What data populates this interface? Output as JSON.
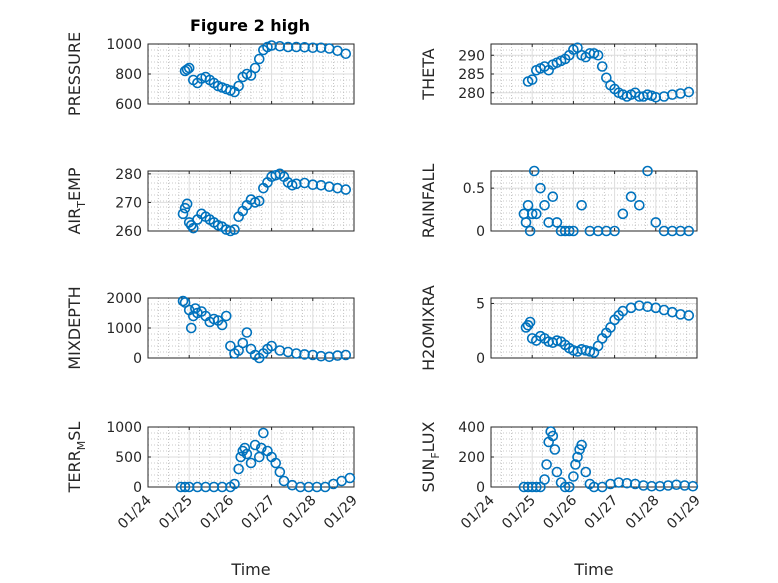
{
  "figure": {
    "title": "Figure 2 high",
    "xlabel": "Time",
    "marker_color": "#0072bd",
    "x_tick_labels": [
      "01/24",
      "01/25",
      "01/26",
      "01/27",
      "01/28",
      "01/29"
    ]
  },
  "chart_data": [
    {
      "type": "scatter",
      "ylabel": "PRESSURE",
      "xlim": [
        0,
        5
      ],
      "ylim": [
        600,
        1000
      ],
      "yticks": [
        600,
        800,
        1000
      ],
      "x": [
        0.9,
        0.95,
        1.0,
        1.1,
        1.2,
        1.3,
        1.4,
        1.5,
        1.6,
        1.7,
        1.8,
        1.9,
        2.0,
        2.1,
        2.2,
        2.3,
        2.4,
        2.5,
        2.6,
        2.7,
        2.8,
        2.9,
        3.0,
        3.2,
        3.4,
        3.6,
        3.8,
        4.0,
        4.2,
        4.4,
        4.6,
        4.8
      ],
      "y": [
        820,
        830,
        840,
        760,
        740,
        770,
        780,
        760,
        740,
        720,
        710,
        700,
        690,
        680,
        720,
        780,
        800,
        790,
        840,
        900,
        960,
        980,
        990,
        985,
        980,
        980,
        978,
        975,
        975,
        970,
        955,
        935
      ]
    },
    {
      "type": "scatter",
      "ylabel": "THETA",
      "xlim": [
        0,
        5
      ],
      "ylim": [
        277,
        293
      ],
      "yticks": [
        280,
        285,
        290
      ],
      "x": [
        0.9,
        1.0,
        1.1,
        1.2,
        1.3,
        1.4,
        1.5,
        1.6,
        1.7,
        1.8,
        1.9,
        2.0,
        2.1,
        2.2,
        2.3,
        2.4,
        2.5,
        2.6,
        2.7,
        2.8,
        2.9,
        3.0,
        3.1,
        3.2,
        3.3,
        3.4,
        3.5,
        3.6,
        3.7,
        3.8,
        3.9,
        4.0,
        4.2,
        4.4,
        4.6,
        4.8
      ],
      "y": [
        283,
        283.5,
        286,
        286.5,
        287,
        286,
        287.5,
        288,
        288.5,
        289,
        290,
        291.5,
        292,
        290,
        289.5,
        290.5,
        290.5,
        290,
        287,
        284,
        282,
        281,
        280,
        279.5,
        279,
        279.5,
        280,
        279,
        279,
        279.5,
        279.2,
        278.8,
        279,
        279.5,
        279.8,
        280.2
      ]
    },
    {
      "type": "scatter",
      "ylabel": "AIR_TEMP",
      "xlim": [
        0,
        5
      ],
      "ylim": [
        260,
        281
      ],
      "yticks": [
        260,
        270,
        280
      ],
      "x": [
        0.85,
        0.9,
        0.95,
        1.0,
        1.05,
        1.1,
        1.2,
        1.3,
        1.4,
        1.5,
        1.6,
        1.7,
        1.8,
        1.9,
        2.0,
        2.1,
        2.2,
        2.3,
        2.4,
        2.5,
        2.6,
        2.7,
        2.8,
        2.9,
        3.0,
        3.1,
        3.2,
        3.3,
        3.4,
        3.5,
        3.6,
        3.8,
        4.0,
        4.2,
        4.4,
        4.6,
        4.8
      ],
      "y": [
        266,
        268,
        269.5,
        263,
        262,
        261,
        264,
        266,
        265,
        264,
        263,
        262,
        261.5,
        260.5,
        260,
        260.5,
        265,
        267,
        269,
        271,
        270,
        270.5,
        275,
        277,
        279,
        279.5,
        280,
        279,
        277,
        276,
        276.5,
        276.8,
        276.2,
        276,
        275.5,
        275,
        274.5
      ]
    },
    {
      "type": "scatter",
      "ylabel": "RAINFALL",
      "xlim": [
        0,
        5
      ],
      "ylim": [
        0,
        0.7
      ],
      "yticks": [
        0,
        0.5
      ],
      "x": [
        0.8,
        0.85,
        0.9,
        0.95,
        1.0,
        1.05,
        1.1,
        1.2,
        1.3,
        1.4,
        1.5,
        1.6,
        1.7,
        1.8,
        1.9,
        2.0,
        2.2,
        2.4,
        2.6,
        2.8,
        3.0,
        3.2,
        3.4,
        3.6,
        3.8,
        4.0,
        4.2,
        4.4,
        4.6,
        4.8
      ],
      "y": [
        0.2,
        0.1,
        0.3,
        0.0,
        0.2,
        0.7,
        0.2,
        0.5,
        0.3,
        0.1,
        0.4,
        0.1,
        0.0,
        0.0,
        0.0,
        0.0,
        0.3,
        0.0,
        0.0,
        0.0,
        0.0,
        0.2,
        0.4,
        0.3,
        0.7,
        0.1,
        0.0,
        0.0,
        0.0,
        0.0
      ]
    },
    {
      "type": "scatter",
      "ylabel": "MIXDEPTH",
      "xlim": [
        0,
        5
      ],
      "ylim": [
        0,
        2000
      ],
      "yticks": [
        0,
        1000,
        2000
      ],
      "x": [
        0.85,
        0.9,
        1.0,
        1.05,
        1.1,
        1.15,
        1.2,
        1.3,
        1.4,
        1.5,
        1.6,
        1.7,
        1.8,
        1.9,
        2.0,
        2.1,
        2.2,
        2.3,
        2.4,
        2.5,
        2.6,
        2.7,
        2.8,
        2.9,
        3.0,
        3.2,
        3.4,
        3.6,
        3.8,
        4.0,
        4.2,
        4.4,
        4.6,
        4.8
      ],
      "y": [
        1900,
        1850,
        1600,
        1000,
        1400,
        1650,
        1500,
        1550,
        1400,
        1200,
        1300,
        1250,
        1100,
        1400,
        400,
        150,
        250,
        500,
        850,
        300,
        100,
        0,
        150,
        300,
        400,
        250,
        200,
        150,
        120,
        100,
        60,
        40,
        80,
        100
      ]
    },
    {
      "type": "scatter",
      "ylabel": "H2OMIXRA",
      "xlim": [
        0,
        5
      ],
      "ylim": [
        0,
        5.5
      ],
      "yticks": [
        0,
        5
      ],
      "x": [
        0.85,
        0.9,
        0.95,
        1.0,
        1.1,
        1.2,
        1.3,
        1.4,
        1.5,
        1.6,
        1.7,
        1.8,
        1.9,
        2.0,
        2.1,
        2.2,
        2.3,
        2.4,
        2.5,
        2.6,
        2.7,
        2.8,
        2.9,
        3.0,
        3.1,
        3.2,
        3.4,
        3.6,
        3.8,
        4.0,
        4.2,
        4.4,
        4.6,
        4.8
      ],
      "y": [
        2.8,
        3.0,
        3.3,
        1.8,
        1.6,
        2.0,
        1.8,
        1.5,
        1.4,
        1.6,
        1.5,
        1.2,
        0.9,
        0.7,
        0.6,
        0.8,
        0.7,
        0.6,
        0.5,
        1.1,
        1.8,
        2.3,
        2.8,
        3.5,
        3.9,
        4.3,
        4.6,
        4.8,
        4.7,
        4.6,
        4.4,
        4.2,
        4.0,
        3.9
      ]
    },
    {
      "type": "scatter",
      "ylabel": "TERR_MSL",
      "xlim": [
        0,
        5
      ],
      "ylim": [
        0,
        1000
      ],
      "yticks": [
        0,
        500,
        1000
      ],
      "x": [
        0.8,
        0.9,
        1.0,
        1.2,
        1.4,
        1.6,
        1.8,
        2.0,
        2.1,
        2.2,
        2.25,
        2.3,
        2.35,
        2.4,
        2.5,
        2.6,
        2.7,
        2.75,
        2.8,
        2.9,
        3.0,
        3.1,
        3.2,
        3.3,
        3.5,
        3.7,
        3.9,
        4.1,
        4.3,
        4.5,
        4.7,
        4.9
      ],
      "y": [
        0,
        0,
        0,
        0,
        0,
        0,
        0,
        0,
        50,
        300,
        500,
        600,
        650,
        550,
        400,
        700,
        500,
        650,
        900,
        600,
        500,
        400,
        250,
        100,
        30,
        0,
        0,
        0,
        0,
        50,
        100,
        150
      ]
    },
    {
      "type": "scatter",
      "ylabel": "SUN_FLUX",
      "xlim": [
        0,
        5
      ],
      "ylim": [
        0,
        400
      ],
      "yticks": [
        0,
        200,
        400
      ],
      "x": [
        0.8,
        0.9,
        1.0,
        1.1,
        1.2,
        1.3,
        1.35,
        1.4,
        1.45,
        1.5,
        1.55,
        1.6,
        1.7,
        1.8,
        1.9,
        2.0,
        2.05,
        2.1,
        2.15,
        2.2,
        2.3,
        2.4,
        2.5,
        2.7,
        2.9,
        3.1,
        3.3,
        3.5,
        3.7,
        3.9,
        4.1,
        4.3,
        4.5,
        4.7,
        4.9
      ],
      "y": [
        0,
        0,
        0,
        0,
        0,
        50,
        150,
        300,
        370,
        340,
        250,
        100,
        30,
        0,
        0,
        70,
        150,
        200,
        250,
        280,
        100,
        20,
        0,
        0,
        20,
        30,
        25,
        20,
        10,
        5,
        5,
        10,
        15,
        10,
        5
      ]
    }
  ]
}
